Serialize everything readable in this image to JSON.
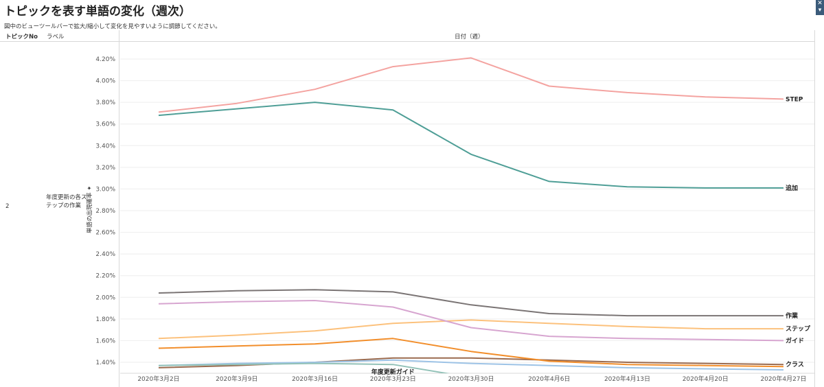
{
  "page": {
    "title": "トピックを表す単語の変化（週次）",
    "subtitle": "図中のビューツールバーで拡大/縮小して変化を見やすいように調節してください。"
  },
  "table": {
    "col_topic": "トピックNo",
    "col_label": "ラベル",
    "col_date": "日付（週）",
    "topic_no": "2",
    "topic_label": "年度更新の各ステップの作業"
  },
  "toolbar": {
    "scroll_icon": "scroll-arrows-icon"
  },
  "chart_data": {
    "type": "line",
    "title": "",
    "xlabel": "日付（週）",
    "ylabel": "単語の出現確率 ✦",
    "x": [
      "2020年3月2日",
      "2020年3月9日",
      "2020年3月16日",
      "2020年3月23日",
      "2020年3月30日",
      "2020年4月6日",
      "2020年4月13日",
      "2020年4月20日",
      "2020年4月27日"
    ],
    "yticks": [
      "1.40%",
      "1.60%",
      "1.80%",
      "2.00%",
      "2.20%",
      "2.40%",
      "2.60%",
      "2.80%",
      "3.00%",
      "3.20%",
      "3.40%",
      "3.60%",
      "3.80%",
      "4.00%",
      "4.20%"
    ],
    "ylim": [
      1.3,
      4.3
    ],
    "grid": true,
    "series": [
      {
        "name": "STEP",
        "color": "#f4a3a0",
        "values": [
          3.71,
          3.79,
          3.92,
          4.13,
          4.21,
          3.95,
          3.89,
          3.85,
          3.83
        ]
      },
      {
        "name": "追加",
        "color": "#4e9e96",
        "values": [
          3.68,
          3.74,
          3.8,
          3.73,
          3.32,
          3.07,
          3.02,
          3.01,
          3.01
        ]
      },
      {
        "name": "作業",
        "color": "#7a7474",
        "values": [
          2.04,
          2.06,
          2.07,
          2.05,
          1.93,
          1.85,
          1.83,
          1.83,
          1.83
        ]
      },
      {
        "name": "ステップ",
        "color": "#fcc17c",
        "values": [
          1.62,
          1.65,
          1.69,
          1.76,
          1.79,
          1.76,
          1.73,
          1.71,
          1.71
        ]
      },
      {
        "name": "ガイド",
        "color": "#d7a5d0",
        "values": [
          1.94,
          1.96,
          1.97,
          1.91,
          1.72,
          1.64,
          1.62,
          1.61,
          1.6
        ]
      },
      {
        "name": "クラス",
        "color": "#9a6a4e",
        "values": [
          1.35,
          1.37,
          1.4,
          1.44,
          1.44,
          1.42,
          1.4,
          1.39,
          1.38
        ]
      },
      {
        "name": "",
        "color": "#f28e2b",
        "values": [
          1.53,
          1.55,
          1.57,
          1.62,
          1.5,
          1.41,
          1.38,
          1.37,
          1.36
        ]
      },
      {
        "name": "",
        "color": "#9dc3e6",
        "values": [
          1.37,
          1.39,
          1.4,
          1.42,
          1.39,
          1.37,
          1.35,
          1.34,
          1.33
        ]
      },
      {
        "name": "年度更新ガイド",
        "color": "#93c2b8",
        "values": [
          1.37,
          1.38,
          1.39,
          1.38,
          1.26,
          null,
          null,
          null,
          null
        ]
      }
    ]
  }
}
